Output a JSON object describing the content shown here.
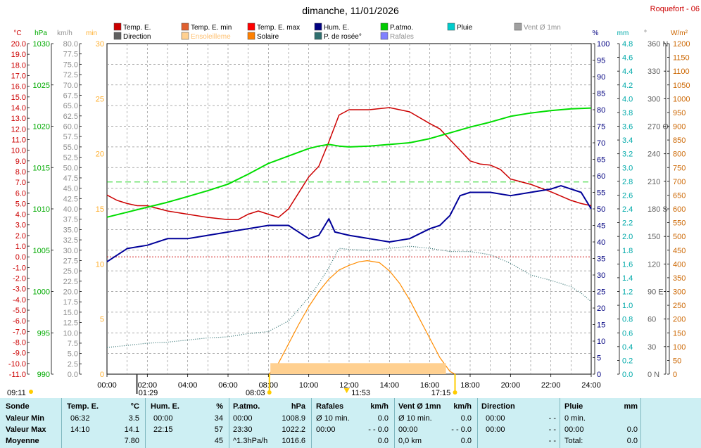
{
  "header": {
    "title": "dimanche, 11/01/2026",
    "station": "Roquefort - 06"
  },
  "legend": [
    {
      "label": "Temp. E.",
      "color": "#cc0000"
    },
    {
      "label": "Direction",
      "color": "#606060"
    },
    {
      "label": "Temp. E. min",
      "color": "#e06030"
    },
    {
      "label": "Ensoleilleme",
      "color": "#ffd090"
    },
    {
      "label": "Temp. E. max",
      "color": "#ff0000"
    },
    {
      "label": "Solaire",
      "color": "#ff8000"
    },
    {
      "label": "Hum. E.",
      "color": "#000080"
    },
    {
      "label": "P. de rosée°",
      "color": "#2f6f6f"
    },
    {
      "label": "P.atmo.",
      "color": "#00cc00"
    },
    {
      "label": "Rafales",
      "color": "#8080ff"
    },
    {
      "label": "Pluie",
      "color": "#00cccc"
    },
    {
      "label": "Vent Ø 1mn",
      "color": "#a0a0a0"
    }
  ],
  "axes": {
    "temp": {
      "unit": "°C",
      "ticks": [
        "20.0",
        "19.0",
        "18.0",
        "17.0",
        "16.0",
        "15.0",
        "14.0",
        "13.0",
        "12.0",
        "11.0",
        "10.0",
        "9.0",
        "8.0",
        "7.0",
        "6.0",
        "5.0",
        "4.0",
        "3.0",
        "2.0",
        "1.0",
        "0.0",
        "-1.0",
        "-2.0",
        "-3.0",
        "-4.0",
        "-5.0",
        "-6.0",
        "-7.0",
        "-8.0",
        "-9.0",
        "-10.0",
        "-11.0"
      ]
    },
    "press": {
      "unit": "hPa",
      "ticks": [
        "1030",
        "1025",
        "1020",
        "1015",
        "1010",
        "1005",
        "1000",
        "995",
        "990"
      ]
    },
    "wind": {
      "unit": "km/h",
      "ticks": [
        "80.0",
        "77.5",
        "75.0",
        "72.5",
        "70.0",
        "67.5",
        "65.0",
        "62.5",
        "60.0",
        "57.5",
        "55.0",
        "52.5",
        "50.0",
        "47.5",
        "45.0",
        "42.5",
        "40.0",
        "37.5",
        "35.0",
        "32.5",
        "30.0",
        "27.5",
        "25.0",
        "22.5",
        "20.0",
        "17.5",
        "15.0",
        "12.5",
        "10.0",
        "7.5",
        "5.0",
        "2.5",
        "0.0"
      ]
    },
    "sun": {
      "unit": "min",
      "ticks": [
        "30",
        "25",
        "20",
        "15",
        "10",
        "5",
        "0"
      ]
    },
    "hum": {
      "unit": "%",
      "ticks": [
        "100",
        "95",
        "90",
        "85",
        "80",
        "75",
        "70",
        "65",
        "60",
        "55",
        "50",
        "45",
        "40",
        "35",
        "30",
        "25",
        "20",
        "15",
        "10",
        "5",
        "0"
      ]
    },
    "rain": {
      "unit": "mm",
      "ticks": [
        "4.8",
        "4.6",
        "4.4",
        "4.2",
        "4.0",
        "3.8",
        "3.6",
        "3.4",
        "3.2",
        "3.0",
        "2.8",
        "2.6",
        "2.4",
        "2.2",
        "2.0",
        "1.8",
        "1.6",
        "1.4",
        "1.2",
        "1.0",
        "0.8",
        "0.6",
        "0.4",
        "0.2",
        "0.0"
      ]
    },
    "dir": {
      "unit": "°",
      "ticks": [
        "360 N",
        "330",
        "300",
        "270 O",
        "240",
        "210",
        "180 S",
        "150",
        "120",
        "90 E",
        "60",
        "30",
        "0 N"
      ]
    },
    "solar": {
      "unit": "W/m²",
      "ticks": [
        "1200",
        "1150",
        "1100",
        "1050",
        "1000",
        "950",
        "900",
        "850",
        "800",
        "750",
        "700",
        "650",
        "600",
        "550",
        "500",
        "450",
        "400",
        "350",
        "300",
        "250",
        "200",
        "150",
        "100",
        "50",
        "0"
      ]
    },
    "time": [
      "00:00",
      "02:00",
      "04:00",
      "06:00",
      "08:00",
      "10:00",
      "12:00",
      "14:00",
      "16:00",
      "18:00",
      "20:00",
      "22:00",
      "24:00"
    ]
  },
  "markers": [
    {
      "label": "09:11"
    },
    {
      "label": "01:29"
    },
    {
      "label": "08:03"
    },
    {
      "label": "11:53"
    },
    {
      "label": "17:15"
    }
  ],
  "chart_data": {
    "type": "line",
    "x_unit": "hours",
    "xlim": [
      0,
      24
    ],
    "series": [
      {
        "name": "Temp. E.",
        "unit": "°C",
        "ylim": [
          -11,
          20
        ],
        "x": [
          0,
          0.5,
          1,
          1.5,
          2,
          3,
          4,
          5,
          6,
          6.5,
          7,
          7.5,
          8,
          8.5,
          9,
          9.5,
          10,
          10.5,
          11,
          11.5,
          12,
          13,
          14,
          15,
          16,
          16.5,
          17,
          17.5,
          18,
          18.5,
          19,
          19.5,
          20,
          21,
          22,
          23,
          23.5,
          24
        ],
        "y": [
          5.8,
          5.3,
          5.0,
          4.8,
          4.8,
          4.3,
          4.0,
          3.7,
          3.5,
          3.5,
          4.0,
          4.3,
          4.0,
          3.7,
          4.5,
          6.0,
          7.5,
          8.5,
          10.8,
          13.3,
          13.8,
          13.8,
          14.0,
          13.6,
          12.5,
          12.0,
          11.0,
          10.0,
          9.0,
          8.7,
          8.6,
          8.2,
          7.3,
          6.8,
          6.1,
          5.3,
          5.0,
          4.8
        ]
      },
      {
        "name": "P.atmo.",
        "unit": "hPa",
        "ylim": [
          990,
          1030
        ],
        "x": [
          0,
          1,
          2,
          3,
          4,
          5,
          6,
          7,
          8,
          9,
          10,
          10.5,
          11,
          11.5,
          12,
          13,
          14,
          15,
          16,
          17,
          18,
          19,
          20,
          21,
          22,
          23,
          24
        ],
        "y": [
          1009.0,
          1009.6,
          1010.2,
          1010.8,
          1011.5,
          1012.2,
          1013.0,
          1014.2,
          1015.5,
          1016.4,
          1017.3,
          1017.6,
          1017.8,
          1017.6,
          1017.5,
          1017.6,
          1017.8,
          1018.0,
          1018.5,
          1019.2,
          1019.9,
          1020.5,
          1021.2,
          1021.6,
          1021.9,
          1022.1,
          1022.2
        ]
      },
      {
        "name": "Hum. E.",
        "unit": "%",
        "ylim": [
          0,
          100
        ],
        "x": [
          0,
          0.5,
          1,
          2,
          3,
          4,
          5,
          6,
          7,
          8,
          9,
          9.5,
          10,
          10.5,
          11,
          11.3,
          12,
          13,
          14,
          15,
          16,
          16.5,
          17,
          17.5,
          18,
          19,
          20,
          21,
          22,
          22.5,
          23,
          23.5,
          24
        ],
        "y": [
          34,
          36,
          38,
          39,
          41,
          41,
          42,
          43,
          44,
          45,
          45,
          43,
          41,
          42,
          47,
          43,
          42,
          41,
          40,
          41,
          44,
          45,
          48,
          54,
          55,
          55,
          54,
          55,
          56,
          57,
          56,
          55,
          50
        ]
      },
      {
        "name": "P. de rosée°",
        "unit": "°C",
        "ylim": [
          -11,
          20
        ],
        "x": [
          0,
          1,
          2,
          3,
          4,
          5,
          6,
          7,
          8,
          9,
          10,
          10.5,
          11,
          11.5,
          12,
          13,
          14,
          15,
          16,
          17,
          18,
          19,
          20,
          21,
          22,
          23,
          23.5,
          24
        ],
        "y": [
          -8.5,
          -8.3,
          -8.1,
          -8.0,
          -7.8,
          -7.6,
          -7.5,
          -7.2,
          -7.0,
          -6.0,
          -3.8,
          -2.5,
          -1.0,
          0.8,
          0.7,
          0.6,
          0.8,
          1.0,
          0.8,
          0.5,
          0.5,
          0.2,
          -0.6,
          -1.7,
          -2.2,
          -2.8,
          -3.4,
          -4.2
        ]
      },
      {
        "name": "Solaire",
        "unit": "W/m²",
        "ylim": [
          0,
          1200
        ],
        "x": [
          8.03,
          8.5,
          9,
          9.5,
          10,
          10.5,
          11,
          11.5,
          12,
          12.5,
          12.9,
          13.5,
          14,
          14.5,
          15,
          15.5,
          16,
          16.5,
          17,
          17.25
        ],
        "y": [
          0,
          40,
          110,
          180,
          245,
          300,
          345,
          378,
          395,
          408,
          412,
          405,
          375,
          330,
          270,
          200,
          130,
          60,
          10,
          0
        ]
      },
      {
        "name": "Ensoleilleme",
        "unit": "min",
        "ylim": [
          0,
          30
        ],
        "x": [
          8.1,
          16.8
        ],
        "y": [
          1,
          1
        ]
      }
    ]
  },
  "table": {
    "headers": {
      "sonde": "Sonde",
      "temp": "Temp. E.",
      "temp_unit": "°C",
      "hum": "Hum. E.",
      "hum_unit": "%",
      "press": "P.atmo.",
      "press_unit": "hPa",
      "rafales": "Rafales",
      "rafales_unit": "km/h",
      "vent": "Vent Ø 1mn",
      "vent_unit": "km/h",
      "dir": "Direction",
      "pluie": "Pluie",
      "pluie_unit": "mm"
    },
    "rows": [
      {
        "label": "Valeur Min",
        "temp_t": "06:32",
        "temp_v": "3.5",
        "hum_t": "00:00",
        "hum_v": "34",
        "press_t": "00:00",
        "press_v": "1008.9",
        "raf_t": "Ø 10 min.",
        "raf_v": "0.0",
        "vent_t": "Ø 10 min.",
        "vent_v": "0.0",
        "dir_t": "00:00",
        "dir_v": "- -",
        "pluie_t": "0 min.",
        "pluie_v": ""
      },
      {
        "label": "Valeur Max",
        "temp_t": "14:10",
        "temp_v": "14.1",
        "hum_t": "22:15",
        "hum_v": "57",
        "press_t": "23:30",
        "press_v": "1022.2",
        "raf_t": "00:00",
        "raf_v": "- - 0.0",
        "vent_t": "00:00",
        "vent_v": "- - 0.0",
        "dir_t": "00:00",
        "dir_v": "- -",
        "pluie_t": "00:00",
        "pluie_v": "0.0"
      },
      {
        "label": "Moyenne",
        "temp_t": "",
        "temp_v": "7.80",
        "hum_t": "",
        "hum_v": "45",
        "press_t": "^1.3hPa/h",
        "press_v": "1016.6",
        "raf_t": "",
        "raf_v": "0.0",
        "vent_t": "0,0 km",
        "vent_v": "0.0",
        "dir_t": "",
        "dir_v": "- -",
        "pluie_t": "Total:",
        "pluie_v": "0.0"
      }
    ]
  }
}
